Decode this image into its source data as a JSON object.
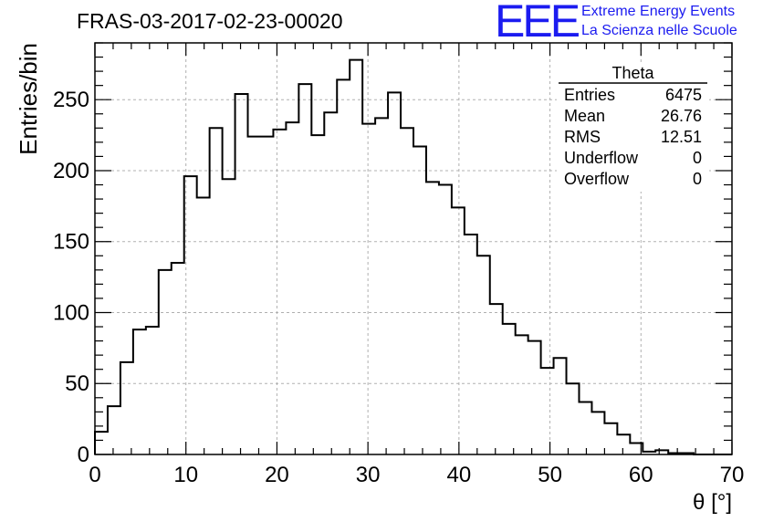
{
  "header": {
    "run_title": "FRAS-03-2017-02-23-00020",
    "logo_mark": "EEE",
    "logo_line1": "Extreme Energy Events",
    "logo_line2": "La Scienza nelle Scuole"
  },
  "stats_box": {
    "title": "Theta",
    "rows": [
      {
        "label": "Entries",
        "value": "6475"
      },
      {
        "label": "Mean",
        "value": "26.76"
      },
      {
        "label": "RMS",
        "value": "12.51"
      },
      {
        "label": "Underflow",
        "value": "0"
      },
      {
        "label": "Overflow",
        "value": "0"
      }
    ]
  },
  "colors": {
    "line": "#000000",
    "grid": "#b0b0b0",
    "logo": "#1b1bf0"
  },
  "chart_data": {
    "type": "bar",
    "style": "step-histogram",
    "xlabel": "θ [°]",
    "ylabel": "Entries/bin",
    "xlim": [
      0,
      70
    ],
    "ylim": [
      0,
      290
    ],
    "xticks": [
      0,
      10,
      20,
      30,
      40,
      50,
      60,
      70
    ],
    "yticks": [
      0,
      50,
      100,
      150,
      200,
      250
    ],
    "grid": true,
    "bin_width": 1.4,
    "bin_edges_start": 0,
    "values": [
      16,
      34,
      65,
      88,
      90,
      130,
      135,
      196,
      181,
      230,
      194,
      254,
      224,
      224,
      229,
      234,
      261,
      225,
      241,
      264,
      278,
      233,
      237,
      255,
      230,
      217,
      192,
      190,
      174,
      155,
      140,
      106,
      92,
      84,
      80,
      61,
      68,
      50,
      37,
      30,
      22,
      14,
      8,
      2,
      3,
      1,
      1,
      0,
      0,
      0
    ]
  }
}
